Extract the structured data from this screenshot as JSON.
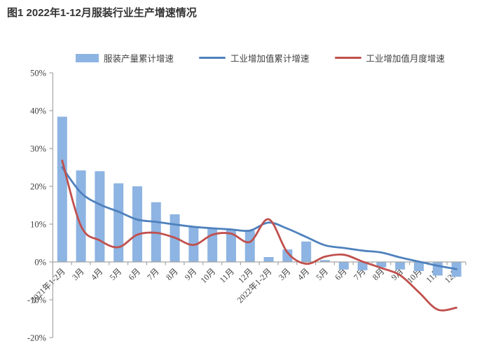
{
  "title": "图1 2022年1-12月服装行业生产增速情况",
  "colors": {
    "bar": "#8db4e2",
    "line_cumulative": "#4f81bd",
    "line_monthly": "#c0504d",
    "axis": "#a6a6a6",
    "text": "#404040",
    "title": "#333333"
  },
  "chart_data": {
    "type": "bar+line combo",
    "title": "图1 2022年1-12月服装行业生产增速情况",
    "categories": [
      "2021年1-2月",
      "3月",
      "4月",
      "5月",
      "6月",
      "7月",
      "8月",
      "9月",
      "10月",
      "11月",
      "12月",
      "2022年1-2月",
      "3月",
      "4月",
      "5月",
      "6月",
      "7月",
      "8月",
      "9月",
      "10月",
      "11月",
      "12月"
    ],
    "series": [
      {
        "name": "服装产量累计增速",
        "type": "bar",
        "color": "#8db4e2",
        "values": [
          38.4,
          24.2,
          24.0,
          20.8,
          20.0,
          15.8,
          12.6,
          9.3,
          9.1,
          8.5,
          8.3,
          1.3,
          3.3,
          5.4,
          0.5,
          -2.0,
          -2.2,
          -1.4,
          -2.0,
          -2.4,
          -3.6,
          -3.9
        ]
      },
      {
        "name": "工业增加值累计增速",
        "type": "line",
        "color": "#4f81bd",
        "values": [
          25.0,
          18.3,
          15.2,
          13.3,
          11.2,
          10.6,
          9.9,
          9.3,
          8.9,
          8.6,
          8.3,
          10.4,
          8.8,
          6.6,
          4.4,
          3.7,
          3.0,
          2.5,
          1.2,
          0.1,
          -1.0,
          -1.9
        ]
      },
      {
        "name": "工业增加值月度增速",
        "type": "line",
        "color": "#c0504d",
        "values": [
          26.8,
          9.5,
          5.7,
          3.9,
          7.2,
          7.7,
          6.4,
          4.5,
          7.2,
          7.5,
          5.3,
          11.3,
          2.5,
          -0.5,
          1.4,
          1.9,
          0.1,
          -1.6,
          -3.5,
          -8.0,
          -12.6,
          -12.1
        ]
      }
    ],
    "ylim": [
      -20,
      50
    ],
    "yticks": [
      {
        "label": "50%",
        "v": 50
      },
      {
        "label": "40%",
        "v": 40
      },
      {
        "label": "30%",
        "v": 30
      },
      {
        "label": "20%",
        "v": 20
      },
      {
        "label": "10%",
        "v": 10
      },
      {
        "label": "0%",
        "v": 0
      },
      {
        "label": "-10%",
        "v": -10
      },
      {
        "label": "-20%",
        "v": -20
      }
    ],
    "grid": false,
    "legend_position": "top",
    "xlabel": "",
    "ylabel": ""
  }
}
